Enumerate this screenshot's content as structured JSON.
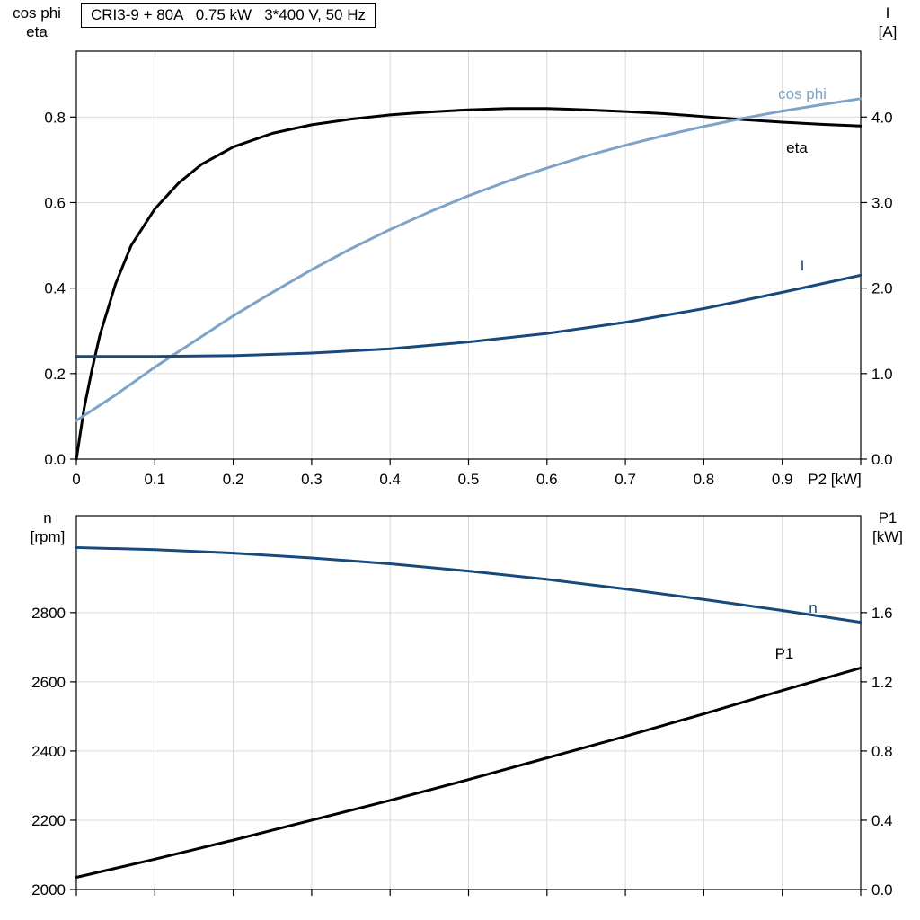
{
  "title": "CRI3-9 + 80A   0.75 kW   3*400 V, 50 Hz",
  "axis_corner_labels": {
    "top_left": [
      "cos phi",
      "eta"
    ],
    "top_right": [
      "I",
      "[A]"
    ],
    "bottom_left": [
      "n",
      "[rpm]"
    ],
    "bottom_right": [
      "P1",
      "[kW]"
    ]
  },
  "colors": {
    "black": "#000000",
    "light_blue": "#7FA3C6",
    "dark_blue": "#17497C",
    "grid": "#d9d9d9"
  },
  "chart_data": [
    {
      "id": "top",
      "type": "line",
      "title": "CRI3-9 + 80A   0.75 kW   3*400 V, 50 Hz",
      "xlabel": "P2 [kW]",
      "xlim": [
        0,
        1.0
      ],
      "x_ticks": [
        0,
        0.1,
        0.2,
        0.3,
        0.4,
        0.5,
        0.6,
        0.7,
        0.8,
        0.9,
        1.0
      ],
      "x_tick_labels": [
        "0",
        "0.1",
        "0.2",
        "0.3",
        "0.4",
        "0.5",
        "0.6",
        "0.7",
        "0.8",
        "0.9",
        ""
      ],
      "left_axis": {
        "label": "cos phi / eta",
        "ticks": [
          0,
          0.2,
          0.4,
          0.6,
          0.8
        ],
        "tick_labels": [
          "0.0",
          "0.2",
          "0.4",
          "0.6",
          "0.8"
        ],
        "range": [
          0,
          0.954
        ]
      },
      "right_axis": {
        "label": "I [A]",
        "ticks": [
          0,
          1.0,
          2.0,
          3.0,
          4.0
        ],
        "tick_labels": [
          "0.0",
          "1.0",
          "2.0",
          "3.0",
          "4.0"
        ],
        "range": [
          0,
          4.77
        ]
      },
      "grid": true,
      "series": [
        {
          "name": "eta",
          "label": "eta",
          "axis": "left",
          "color": "#000000",
          "points": [
            [
              0,
              0
            ],
            [
              0.01,
              0.12
            ],
            [
              0.02,
              0.21
            ],
            [
              0.03,
              0.29
            ],
            [
              0.05,
              0.41
            ],
            [
              0.07,
              0.5
            ],
            [
              0.1,
              0.585
            ],
            [
              0.13,
              0.645
            ],
            [
              0.16,
              0.69
            ],
            [
              0.2,
              0.73
            ],
            [
              0.25,
              0.762
            ],
            [
              0.3,
              0.782
            ],
            [
              0.35,
              0.795
            ],
            [
              0.4,
              0.805
            ],
            [
              0.45,
              0.812
            ],
            [
              0.5,
              0.817
            ],
            [
              0.55,
              0.82
            ],
            [
              0.6,
              0.82
            ],
            [
              0.65,
              0.817
            ],
            [
              0.7,
              0.813
            ],
            [
              0.75,
              0.808
            ],
            [
              0.8,
              0.801
            ],
            [
              0.85,
              0.794
            ],
            [
              0.9,
              0.788
            ],
            [
              0.95,
              0.783
            ],
            [
              1.0,
              0.779
            ]
          ]
        },
        {
          "name": "cos-phi",
          "label": "cos phi",
          "axis": "left",
          "color": "#7FA3C6",
          "points": [
            [
              0,
              0.09
            ],
            [
              0.05,
              0.15
            ],
            [
              0.1,
              0.215
            ],
            [
              0.15,
              0.275
            ],
            [
              0.2,
              0.335
            ],
            [
              0.25,
              0.39
            ],
            [
              0.3,
              0.443
            ],
            [
              0.35,
              0.492
            ],
            [
              0.4,
              0.537
            ],
            [
              0.45,
              0.578
            ],
            [
              0.5,
              0.616
            ],
            [
              0.55,
              0.65
            ],
            [
              0.6,
              0.681
            ],
            [
              0.65,
              0.709
            ],
            [
              0.7,
              0.734
            ],
            [
              0.75,
              0.757
            ],
            [
              0.8,
              0.778
            ],
            [
              0.85,
              0.797
            ],
            [
              0.9,
              0.814
            ],
            [
              0.95,
              0.829
            ],
            [
              1.0,
              0.843
            ]
          ]
        },
        {
          "name": "current",
          "label": "I",
          "axis": "right",
          "color": "#17497C",
          "points": [
            [
              0,
              1.2
            ],
            [
              0.1,
              1.2
            ],
            [
              0.2,
              1.21
            ],
            [
              0.3,
              1.24
            ],
            [
              0.4,
              1.29
            ],
            [
              0.5,
              1.37
            ],
            [
              0.6,
              1.47
            ],
            [
              0.7,
              1.6
            ],
            [
              0.8,
              1.76
            ],
            [
              0.9,
              1.95
            ],
            [
              1.0,
              2.15
            ]
          ]
        }
      ]
    },
    {
      "id": "bottom",
      "type": "line",
      "title": "",
      "xlabel": "",
      "xlim": [
        0,
        1.0
      ],
      "x_ticks": [
        0,
        0.1,
        0.2,
        0.3,
        0.4,
        0.5,
        0.6,
        0.7,
        0.8,
        0.9,
        1.0
      ],
      "x_tick_labels": [
        "",
        "",
        "",
        "",
        "",
        "",
        "",
        "",
        "",
        "",
        ""
      ],
      "left_axis": {
        "label": "n [rpm]",
        "ticks": [
          2000,
          2200,
          2400,
          2600,
          2800
        ],
        "tick_labels": [
          "2000",
          "2200",
          "2400",
          "2600",
          "2800"
        ],
        "range": [
          2000,
          3080
        ]
      },
      "right_axis": {
        "label": "P1 [kW]",
        "ticks": [
          0,
          0.4,
          0.8,
          1.2,
          1.6
        ],
        "tick_labels": [
          "0.0",
          "0.4",
          "0.8",
          "1.2",
          "1.6"
        ],
        "range": [
          0,
          2.16
        ]
      },
      "grid": true,
      "series": [
        {
          "name": "speed",
          "label": "n",
          "axis": "left",
          "color": "#17497C",
          "points": [
            [
              0,
              2988
            ],
            [
              0.1,
              2982
            ],
            [
              0.2,
              2972
            ],
            [
              0.3,
              2958
            ],
            [
              0.4,
              2941
            ],
            [
              0.5,
              2920
            ],
            [
              0.6,
              2896
            ],
            [
              0.7,
              2868
            ],
            [
              0.8,
              2838
            ],
            [
              0.9,
              2806
            ],
            [
              1.0,
              2772
            ]
          ]
        },
        {
          "name": "power-in",
          "label": "P1",
          "axis": "right",
          "color": "#000000",
          "points": [
            [
              0,
              0.07
            ],
            [
              0.1,
              0.175
            ],
            [
              0.2,
              0.285
            ],
            [
              0.3,
              0.4
            ],
            [
              0.4,
              0.515
            ],
            [
              0.5,
              0.635
            ],
            [
              0.6,
              0.76
            ],
            [
              0.7,
              0.885
            ],
            [
              0.8,
              1.015
            ],
            [
              0.9,
              1.15
            ],
            [
              1.0,
              1.28
            ]
          ]
        }
      ]
    }
  ]
}
